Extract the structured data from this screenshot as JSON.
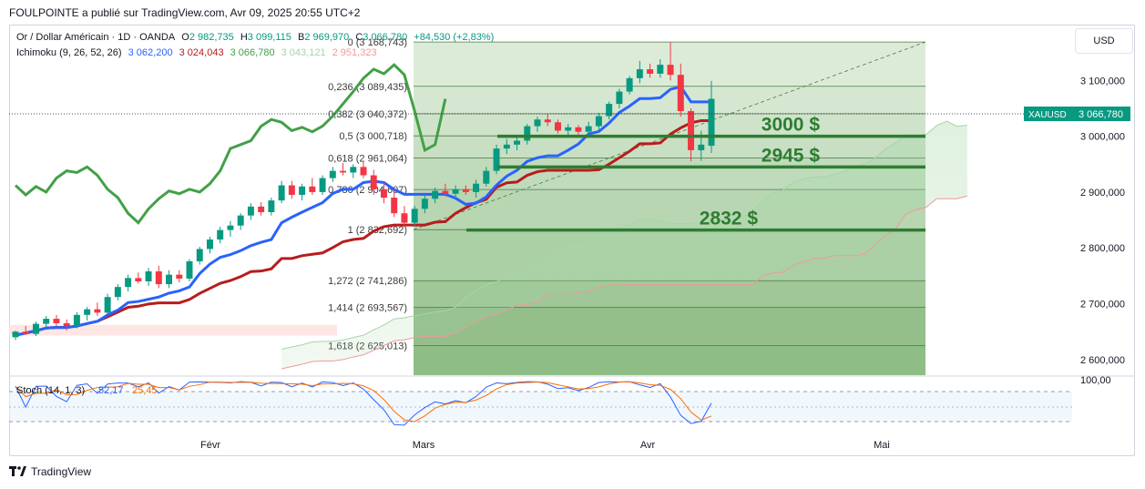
{
  "header": {
    "title": "FOULPOINTE a publié sur TradingView.com, Avr 09, 2025 20:55 UTC+2"
  },
  "legend": {
    "symbol": "Or / Dollar Américain · 1D · OANDA",
    "o": "O",
    "o_val": "2 982,735",
    "h": "H",
    "h_val": "3 099,115",
    "b": "B",
    "b_val": "2 969,970",
    "c": "C",
    "c_val": "3 066,780",
    "change": "+84,530 (+2,83%)",
    "ichimoku": "Ichimoku (9, 26, 52, 26)",
    "ichi_vals": [
      "3 062,200",
      "3 024,043",
      "3 066,780",
      "3 043,121",
      "2 951,323"
    ],
    "ichi_colors": [
      "#2962ff",
      "#b71c1c",
      "#43a047",
      "#a5d6a7",
      "#ef9a9a"
    ]
  },
  "currency_button": "USD",
  "price_label": {
    "symbol": "XAUUSD",
    "value": "3 066,780"
  },
  "stoch": {
    "label": "Stoch (14, 1, 3)",
    "k": "52,17",
    "d": "25,45",
    "scale": "100,00"
  },
  "footer": {
    "brand": "TradingView"
  },
  "chart_data": {
    "type": "candlestick",
    "y_ticks": [
      "3 100,000",
      "3 000,000",
      "2 900,000",
      "2 800,000",
      "2 700,000",
      "2 600,000"
    ],
    "y_tick_values": [
      3100,
      3000,
      2900,
      2800,
      2700,
      2600
    ],
    "ylim": [
      2572,
      3200
    ],
    "x_ticks": [
      "Févr",
      "Mars",
      "Avr",
      "Mai"
    ],
    "fib_levels": [
      {
        "label": "0 (3 168,743)",
        "value": 3168.743
      },
      {
        "label": "0,236 (3 089,435)",
        "value": 3089.435
      },
      {
        "label": "0,382 (3 040,372)",
        "value": 3040.372
      },
      {
        "label": "0,5 (3 000,718)",
        "value": 3000.718
      },
      {
        "label": "0,618 (2 961,064)",
        "value": 2961.064
      },
      {
        "label": "0,786 (2 904,607)",
        "value": 2904.607
      },
      {
        "label": "1 (2 832,692)",
        "value": 2832.692
      },
      {
        "label": "1,272 (2 741,286)",
        "value": 2741.286
      },
      {
        "label": "1,414 (2 693,567)",
        "value": 2693.567
      },
      {
        "label": "1,618 (2 625,013)",
        "value": 2625.013
      }
    ],
    "annotations": [
      {
        "text": "3000 $",
        "value": 3000
      },
      {
        "text": "2945 $",
        "value": 2945
      },
      {
        "text": "2832 $",
        "value": 2832
      }
    ],
    "candles": [
      [
        2640,
        2652,
        2635,
        2650
      ],
      [
        2650,
        2660,
        2644,
        2646
      ],
      [
        2646,
        2668,
        2642,
        2664
      ],
      [
        2664,
        2678,
        2658,
        2673
      ],
      [
        2673,
        2680,
        2660,
        2665
      ],
      [
        2665,
        2672,
        2652,
        2660
      ],
      [
        2660,
        2685,
        2656,
        2680
      ],
      [
        2680,
        2694,
        2670,
        2690
      ],
      [
        2690,
        2702,
        2678,
        2684
      ],
      [
        2684,
        2718,
        2680,
        2712
      ],
      [
        2712,
        2735,
        2706,
        2730
      ],
      [
        2730,
        2752,
        2722,
        2746
      ],
      [
        2746,
        2756,
        2736,
        2740
      ],
      [
        2740,
        2764,
        2732,
        2758
      ],
      [
        2758,
        2768,
        2728,
        2735
      ],
      [
        2735,
        2760,
        2728,
        2752
      ],
      [
        2752,
        2760,
        2738,
        2745
      ],
      [
        2745,
        2780,
        2740,
        2776
      ],
      [
        2776,
        2802,
        2770,
        2798
      ],
      [
        2798,
        2820,
        2790,
        2815
      ],
      [
        2815,
        2838,
        2808,
        2832
      ],
      [
        2832,
        2848,
        2820,
        2840
      ],
      [
        2840,
        2862,
        2832,
        2858
      ],
      [
        2858,
        2880,
        2850,
        2874
      ],
      [
        2874,
        2882,
        2858,
        2864
      ],
      [
        2864,
        2890,
        2858,
        2885
      ],
      [
        2885,
        2920,
        2880,
        2912
      ],
      [
        2912,
        2920,
        2888,
        2895
      ],
      [
        2895,
        2915,
        2885,
        2910
      ],
      [
        2910,
        2925,
        2895,
        2900
      ],
      [
        2900,
        2930,
        2895,
        2925
      ],
      [
        2925,
        2945,
        2918,
        2938
      ],
      [
        2938,
        2952,
        2930,
        2935
      ],
      [
        2935,
        2950,
        2925,
        2945
      ],
      [
        2945,
        2954,
        2925,
        2930
      ],
      [
        2930,
        2940,
        2895,
        2905
      ],
      [
        2905,
        2918,
        2880,
        2890
      ],
      [
        2890,
        2905,
        2855,
        2862
      ],
      [
        2862,
        2875,
        2838,
        2845
      ],
      [
        2845,
        2875,
        2840,
        2870
      ],
      [
        2870,
        2895,
        2862,
        2888
      ],
      [
        2888,
        2908,
        2880,
        2902
      ],
      [
        2902,
        2915,
        2892,
        2897
      ],
      [
        2897,
        2912,
        2888,
        2905
      ],
      [
        2905,
        2912,
        2895,
        2900
      ],
      [
        2900,
        2922,
        2890,
        2915
      ],
      [
        2915,
        2945,
        2910,
        2938
      ],
      [
        2938,
        2985,
        2932,
        2978
      ],
      [
        2978,
        2995,
        2968,
        2985
      ],
      [
        2985,
        2998,
        2975,
        2992
      ],
      [
        2992,
        3022,
        2985,
        3018
      ],
      [
        3018,
        3035,
        3008,
        3030
      ],
      [
        3030,
        3040,
        3018,
        3025
      ],
      [
        3025,
        3030,
        3005,
        3010
      ],
      [
        3010,
        3022,
        3000,
        3016
      ],
      [
        3016,
        3020,
        3002,
        3008
      ],
      [
        3008,
        3026,
        3000,
        3018
      ],
      [
        3018,
        3042,
        3010,
        3036
      ],
      [
        3036,
        3062,
        3030,
        3058
      ],
      [
        3058,
        3085,
        3050,
        3080
      ],
      [
        3080,
        3108,
        3075,
        3104
      ],
      [
        3104,
        3135,
        3095,
        3120
      ],
      [
        3120,
        3130,
        3105,
        3112
      ],
      [
        3112,
        3138,
        3105,
        3128
      ],
      [
        3128,
        3168,
        3100,
        3110
      ],
      [
        3110,
        3130,
        3035,
        3045
      ],
      [
        3045,
        3050,
        2955,
        2975
      ],
      [
        2975,
        3010,
        2956,
        2985
      ],
      [
        2983,
        3099,
        2970,
        3067
      ]
    ]
  }
}
